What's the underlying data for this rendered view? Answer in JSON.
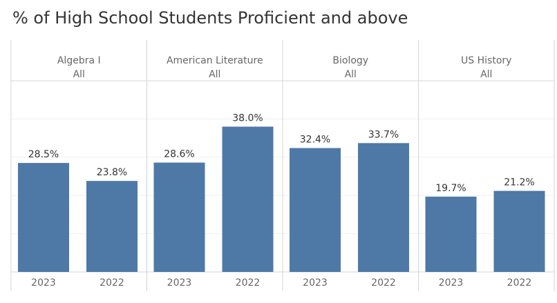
{
  "chart_data": {
    "type": "bar",
    "title": "% of High School Students Proficient and above",
    "panels": [
      {
        "subject": "Algebra I",
        "filter": "All"
      },
      {
        "subject": "American Literature",
        "filter": "All"
      },
      {
        "subject": "Biology",
        "filter": "All"
      },
      {
        "subject": "US History",
        "filter": "All"
      }
    ],
    "categories": [
      "2023",
      "2022"
    ],
    "values": [
      [
        28.5,
        23.8
      ],
      [
        28.6,
        38.0
      ],
      [
        32.4,
        33.7
      ],
      [
        19.7,
        21.2
      ]
    ],
    "value_labels": [
      [
        "28.5%",
        "23.8%"
      ],
      [
        "28.6%",
        "38.0%"
      ],
      [
        "32.4%",
        "33.7%"
      ],
      [
        "19.7%",
        "21.2%"
      ]
    ],
    "ylim": [
      0,
      50
    ],
    "grid": true,
    "colors": {
      "bar": "#4e79a7",
      "text": "#333333",
      "muted": "#666666",
      "divider": "#d4d4d4",
      "grid": "#efefef"
    }
  }
}
